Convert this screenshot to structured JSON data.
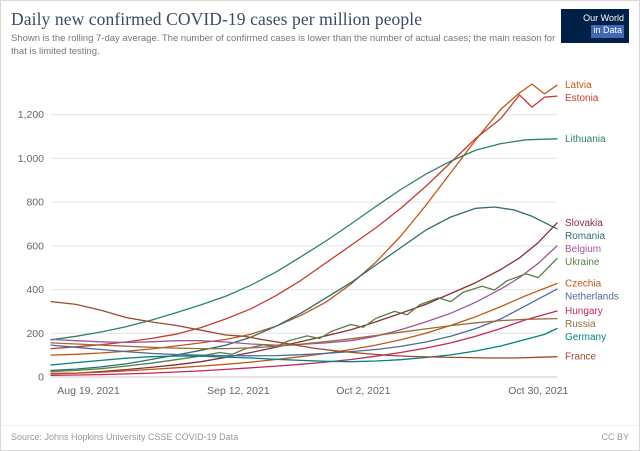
{
  "header": {
    "title": "Daily new confirmed COVID-19 cases per million people",
    "subtitle": "Shown is the rolling 7-day average. The number of confirmed cases is lower than the number of actual cases; the main reason for that is limited testing.",
    "logo": {
      "line1": "Our World",
      "line2": "in Data",
      "bg": "#002147",
      "accent": "#4268b3"
    }
  },
  "footer": {
    "source": "Source: Johns Hopkins University CSSE COVID-19 Data",
    "license": "CC BY"
  },
  "chart_data": {
    "type": "line",
    "title": "Daily new confirmed COVID-19 cases per million people",
    "xlabel": "",
    "ylabel": "",
    "grid": true,
    "legend": "right-edge-labels",
    "x_axis": {
      "domain_days": [
        0,
        81
      ],
      "ticks": [
        {
          "day": 6,
          "label": "Aug 19, 2021"
        },
        {
          "day": 30,
          "label": "Sep 12, 2021"
        },
        {
          "day": 50,
          "label": "Oct 2, 2021"
        },
        {
          "day": 78,
          "label": "Oct 30, 2021"
        }
      ]
    },
    "y_axis": {
      "max": 1400,
      "ticks": [
        {
          "value": 0,
          "label": "0"
        },
        {
          "value": 200,
          "label": "200"
        },
        {
          "value": 400,
          "label": "400"
        },
        {
          "value": 600,
          "label": "600"
        },
        {
          "value": 800,
          "label": "800"
        },
        {
          "value": 1000,
          "label": "1,000"
        },
        {
          "value": 1200,
          "label": "1,200"
        }
      ]
    },
    "series": [
      {
        "name": "Latvia",
        "color": "#c05917",
        "points": [
          [
            0,
            100
          ],
          [
            4,
            104
          ],
          [
            8,
            110
          ],
          [
            12,
            118
          ],
          [
            16,
            128
          ],
          [
            20,
            142
          ],
          [
            24,
            156
          ],
          [
            28,
            172
          ],
          [
            32,
            196
          ],
          [
            36,
            232
          ],
          [
            40,
            282
          ],
          [
            44,
            342
          ],
          [
            48,
            425
          ],
          [
            52,
            525
          ],
          [
            56,
            645
          ],
          [
            60,
            785
          ],
          [
            64,
            935
          ],
          [
            68,
            1085
          ],
          [
            72,
            1225
          ],
          [
            75,
            1300
          ],
          [
            77,
            1340
          ],
          [
            79,
            1295
          ],
          [
            81,
            1335
          ]
        ]
      },
      {
        "name": "Estonia",
        "color": "#c63a32",
        "points": [
          [
            0,
            130
          ],
          [
            4,
            138
          ],
          [
            8,
            148
          ],
          [
            12,
            160
          ],
          [
            16,
            176
          ],
          [
            20,
            196
          ],
          [
            24,
            226
          ],
          [
            28,
            266
          ],
          [
            32,
            312
          ],
          [
            36,
            372
          ],
          [
            40,
            442
          ],
          [
            44,
            522
          ],
          [
            48,
            602
          ],
          [
            52,
            682
          ],
          [
            56,
            772
          ],
          [
            60,
            872
          ],
          [
            64,
            982
          ],
          [
            68,
            1092
          ],
          [
            72,
            1182
          ],
          [
            75,
            1290
          ],
          [
            77,
            1235
          ],
          [
            79,
            1280
          ],
          [
            81,
            1285
          ]
        ]
      },
      {
        "name": "Lithuania",
        "color": "#2c8465",
        "points": [
          [
            0,
            170
          ],
          [
            4,
            186
          ],
          [
            8,
            206
          ],
          [
            12,
            230
          ],
          [
            16,
            260
          ],
          [
            20,
            294
          ],
          [
            24,
            330
          ],
          [
            28,
            370
          ],
          [
            32,
            420
          ],
          [
            36,
            480
          ],
          [
            40,
            550
          ],
          [
            44,
            622
          ],
          [
            48,
            700
          ],
          [
            52,
            780
          ],
          [
            56,
            858
          ],
          [
            60,
            928
          ],
          [
            64,
            988
          ],
          [
            68,
            1038
          ],
          [
            72,
            1068
          ],
          [
            76,
            1085
          ],
          [
            81,
            1090
          ]
        ]
      },
      {
        "name": "Slovakia",
        "color": "#872e3b",
        "points": [
          [
            0,
            15
          ],
          [
            4,
            18
          ],
          [
            8,
            25
          ],
          [
            12,
            34
          ],
          [
            16,
            44
          ],
          [
            20,
            56
          ],
          [
            24,
            70
          ],
          [
            28,
            90
          ],
          [
            32,
            112
          ],
          [
            36,
            136
          ],
          [
            40,
            162
          ],
          [
            44,
            188
          ],
          [
            48,
            216
          ],
          [
            52,
            252
          ],
          [
            56,
            292
          ],
          [
            60,
            332
          ],
          [
            64,
            382
          ],
          [
            68,
            432
          ],
          [
            72,
            492
          ],
          [
            75,
            545
          ],
          [
            78,
            615
          ],
          [
            81,
            705
          ]
        ]
      },
      {
        "name": "Romania",
        "color": "#2e6c74",
        "points": [
          [
            0,
            30
          ],
          [
            4,
            36
          ],
          [
            8,
            46
          ],
          [
            12,
            60
          ],
          [
            16,
            80
          ],
          [
            20,
            100
          ],
          [
            24,
            122
          ],
          [
            28,
            146
          ],
          [
            32,
            182
          ],
          [
            36,
            232
          ],
          [
            40,
            292
          ],
          [
            44,
            362
          ],
          [
            48,
            432
          ],
          [
            52,
            512
          ],
          [
            56,
            592
          ],
          [
            60,
            672
          ],
          [
            64,
            732
          ],
          [
            68,
            772
          ],
          [
            71,
            778
          ],
          [
            74,
            765
          ],
          [
            77,
            735
          ],
          [
            81,
            678
          ]
        ]
      },
      {
        "name": "Belgium",
        "color": "#a2559c",
        "points": [
          [
            0,
            172
          ],
          [
            4,
            166
          ],
          [
            8,
            161
          ],
          [
            12,
            158
          ],
          [
            16,
            161
          ],
          [
            20,
            166
          ],
          [
            24,
            166
          ],
          [
            28,
            160
          ],
          [
            32,
            151
          ],
          [
            36,
            146
          ],
          [
            40,
            149
          ],
          [
            44,
            156
          ],
          [
            48,
            166
          ],
          [
            52,
            186
          ],
          [
            56,
            216
          ],
          [
            60,
            252
          ],
          [
            64,
            292
          ],
          [
            68,
            342
          ],
          [
            72,
            402
          ],
          [
            75,
            455
          ],
          [
            78,
            520
          ],
          [
            81,
            600
          ]
        ]
      },
      {
        "name": "Ukraine",
        "color": "#578145",
        "points": [
          [
            0,
            25
          ],
          [
            4,
            30
          ],
          [
            8,
            38
          ],
          [
            12,
            50
          ],
          [
            16,
            63
          ],
          [
            20,
            79
          ],
          [
            24,
            96
          ],
          [
            27,
            112
          ],
          [
            29,
            104
          ],
          [
            31,
            128
          ],
          [
            34,
            148
          ],
          [
            36,
            138
          ],
          [
            38,
            165
          ],
          [
            41,
            188
          ],
          [
            43,
            176
          ],
          [
            45,
            210
          ],
          [
            48,
            240
          ],
          [
            50,
            228
          ],
          [
            52,
            268
          ],
          [
            55,
            300
          ],
          [
            57,
            285
          ],
          [
            59,
            330
          ],
          [
            62,
            362
          ],
          [
            64,
            345
          ],
          [
            66,
            388
          ],
          [
            69,
            415
          ],
          [
            71,
            398
          ],
          [
            73,
            440
          ],
          [
            76,
            472
          ],
          [
            78,
            455
          ],
          [
            81,
            542
          ]
        ]
      },
      {
        "name": "Czechia",
        "color": "#be5915",
        "points": [
          [
            0,
            17
          ],
          [
            4,
            18
          ],
          [
            8,
            22
          ],
          [
            12,
            28
          ],
          [
            16,
            35
          ],
          [
            20,
            42
          ],
          [
            24,
            50
          ],
          [
            28,
            58
          ],
          [
            32,
            68
          ],
          [
            36,
            80
          ],
          [
            40,
            93
          ],
          [
            44,
            108
          ],
          [
            48,
            126
          ],
          [
            52,
            146
          ],
          [
            56,
            170
          ],
          [
            60,
            200
          ],
          [
            64,
            236
          ],
          [
            68,
            276
          ],
          [
            72,
            322
          ],
          [
            76,
            372
          ],
          [
            81,
            428
          ]
        ]
      },
      {
        "name": "Netherlands",
        "color": "#4c6a9c",
        "points": [
          [
            0,
            146
          ],
          [
            4,
            136
          ],
          [
            8,
            126
          ],
          [
            12,
            116
          ],
          [
            16,
            108
          ],
          [
            20,
            103
          ],
          [
            24,
            100
          ],
          [
            28,
            98
          ],
          [
            32,
            97
          ],
          [
            36,
            98
          ],
          [
            40,
            102
          ],
          [
            44,
            108
          ],
          [
            48,
            116
          ],
          [
            52,
            126
          ],
          [
            56,
            140
          ],
          [
            60,
            160
          ],
          [
            64,
            186
          ],
          [
            68,
            222
          ],
          [
            72,
            266
          ],
          [
            76,
            326
          ],
          [
            81,
            402
          ]
        ]
      },
      {
        "name": "Hungary",
        "color": "#c7275b",
        "points": [
          [
            0,
            8
          ],
          [
            4,
            9
          ],
          [
            8,
            11
          ],
          [
            12,
            14
          ],
          [
            16,
            18
          ],
          [
            20,
            23
          ],
          [
            24,
            28
          ],
          [
            28,
            35
          ],
          [
            32,
            42
          ],
          [
            36,
            50
          ],
          [
            40,
            58
          ],
          [
            44,
            68
          ],
          [
            48,
            80
          ],
          [
            52,
            95
          ],
          [
            56,
            112
          ],
          [
            60,
            132
          ],
          [
            64,
            156
          ],
          [
            68,
            186
          ],
          [
            72,
            222
          ],
          [
            76,
            262
          ],
          [
            81,
            302
          ]
        ]
      },
      {
        "name": "Russia",
        "color": "#996d39",
        "points": [
          [
            0,
            156
          ],
          [
            4,
            151
          ],
          [
            8,
            146
          ],
          [
            12,
            141
          ],
          [
            16,
            136
          ],
          [
            20,
            132
          ],
          [
            24,
            130
          ],
          [
            28,
            130
          ],
          [
            32,
            133
          ],
          [
            36,
            140
          ],
          [
            40,
            150
          ],
          [
            44,
            162
          ],
          [
            48,
            175
          ],
          [
            52,
            190
          ],
          [
            56,
            205
          ],
          [
            60,
            220
          ],
          [
            64,
            235
          ],
          [
            68,
            248
          ],
          [
            72,
            258
          ],
          [
            76,
            264
          ],
          [
            81,
            267
          ]
        ]
      },
      {
        "name": "Germany",
        "color": "#00847e",
        "points": [
          [
            0,
            55
          ],
          [
            4,
            66
          ],
          [
            8,
            76
          ],
          [
            12,
            86
          ],
          [
            16,
            93
          ],
          [
            20,
            96
          ],
          [
            24,
            95
          ],
          [
            28,
            91
          ],
          [
            32,
            87
          ],
          [
            36,
            81
          ],
          [
            40,
            76
          ],
          [
            44,
            72
          ],
          [
            48,
            70
          ],
          [
            52,
            73
          ],
          [
            56,
            79
          ],
          [
            60,
            89
          ],
          [
            64,
            101
          ],
          [
            68,
            119
          ],
          [
            72,
            142
          ],
          [
            76,
            172
          ],
          [
            79,
            195
          ],
          [
            81,
            222
          ]
        ]
      },
      {
        "name": "France",
        "color": "#9c4a2f",
        "points": [
          [
            0,
            345
          ],
          [
            4,
            332
          ],
          [
            8,
            305
          ],
          [
            12,
            272
          ],
          [
            16,
            252
          ],
          [
            20,
            236
          ],
          [
            24,
            214
          ],
          [
            28,
            192
          ],
          [
            31,
            186
          ],
          [
            34,
            170
          ],
          [
            38,
            152
          ],
          [
            42,
            132
          ],
          [
            46,
            118
          ],
          [
            50,
            108
          ],
          [
            54,
            99
          ],
          [
            58,
            94
          ],
          [
            62,
            91
          ],
          [
            66,
            89
          ],
          [
            70,
            87
          ],
          [
            74,
            87
          ],
          [
            78,
            90
          ],
          [
            81,
            93
          ]
        ]
      }
    ]
  }
}
